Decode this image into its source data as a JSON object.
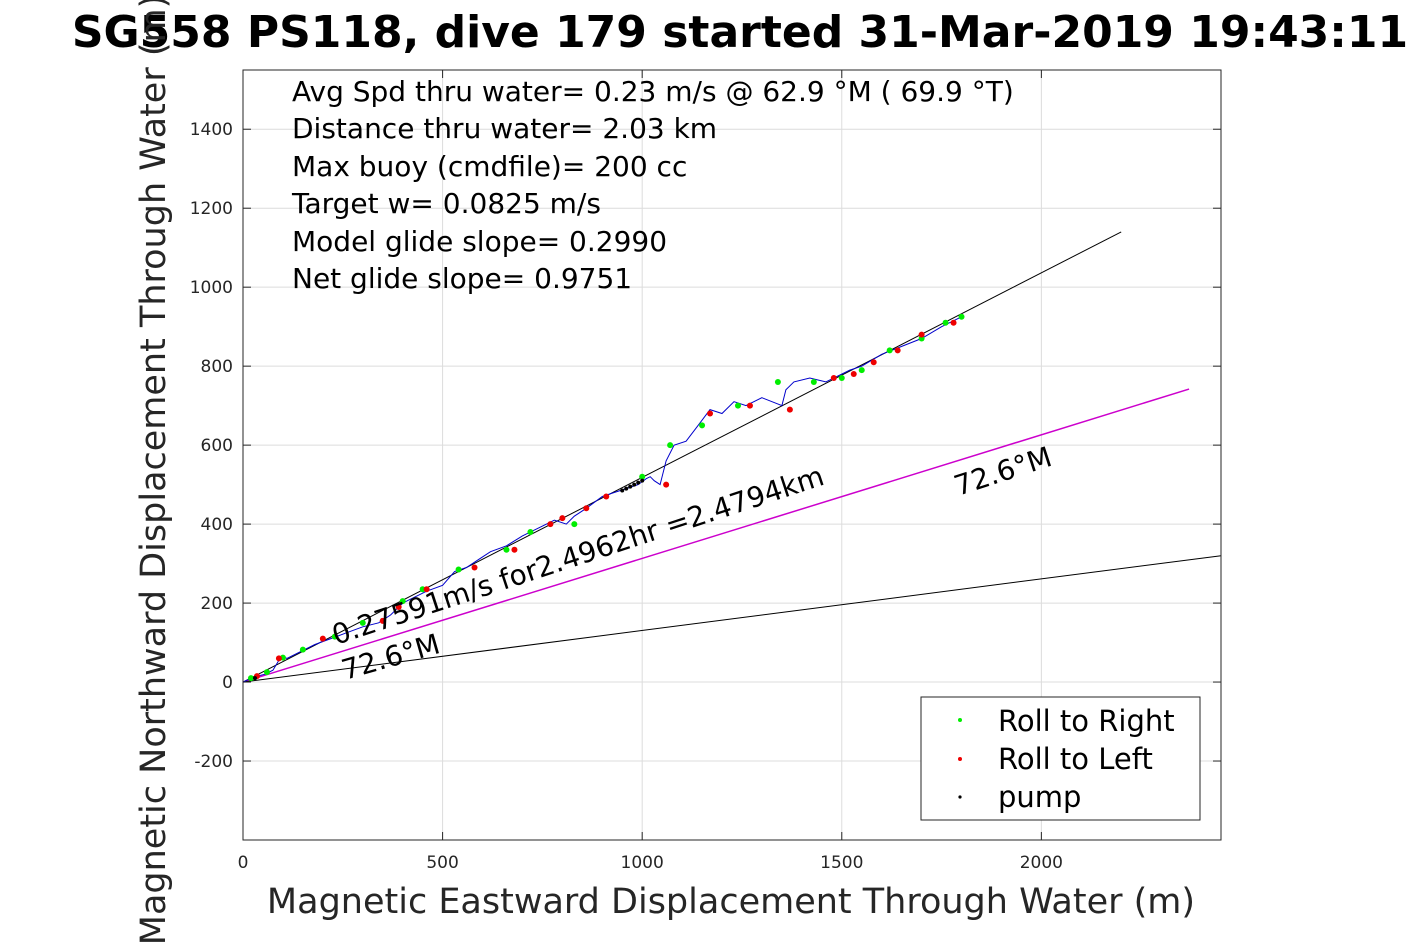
{
  "chart_data": {
    "type": "line",
    "title": "SG558 PS118, dive 179 started 31-Mar-2019 19:43:11",
    "xlabel": "Magnetic Eastward Displacement Through Water (m)",
    "ylabel": "Magnetic Northward Displacement Through Water (m)",
    "xlim": [
      0,
      2450
    ],
    "ylim": [
      -400,
      1550
    ],
    "xticks": [
      0,
      500,
      1000,
      1500,
      2000
    ],
    "yticks": [
      -200,
      0,
      200,
      400,
      600,
      800,
      1000,
      1200,
      1400
    ],
    "grid": true,
    "annotations": [
      "Avg Spd thru water=  0.23 m/s @  62.9 °M ( 69.9 °T)",
      "Distance thru water=  2.03 km",
      "Max buoy (cmdfile)= 200 cc",
      "Target w= 0.0825 m/s",
      "Model glide slope= 0.2990",
      "Net glide slope= 0.9751"
    ],
    "current_label": "0.27591m/s for2.4962hr =2.4794km",
    "heading_label_1": "72.6°M",
    "heading_label_2": "72.6°M",
    "legend": {
      "position": "bottom-right",
      "entries": [
        {
          "label": "Roll to Right",
          "color": "#00ee00"
        },
        {
          "label": "Roll to Left",
          "color": "#ee0000"
        },
        {
          "label": "pump",
          "color": "#000000"
        }
      ]
    },
    "lines": [
      {
        "name": "avg-heading-line",
        "color": "#000000",
        "x": [
          0,
          2200
        ],
        "y": [
          0,
          1140
        ]
      },
      {
        "name": "current-line",
        "color": "#cc00cc",
        "x": [
          0,
          2370
        ],
        "y": [
          0,
          742
        ]
      },
      {
        "name": "lower-heading-line",
        "color": "#000000",
        "x": [
          0,
          2450
        ],
        "y": [
          0,
          320
        ]
      }
    ],
    "track": {
      "color": "#0000cc",
      "x": [
        0,
        25,
        55,
        75,
        90,
        100,
        110,
        140,
        180,
        220,
        260,
        300,
        340,
        370,
        400,
        420,
        460,
        500,
        530,
        560,
        590,
        620,
        660,
        700,
        740,
        780,
        810,
        830,
        860,
        900,
        930,
        960,
        990,
        1010,
        1020,
        1025,
        1030,
        1045,
        1060,
        1080,
        1110,
        1140,
        1170,
        1200,
        1230,
        1260,
        1300,
        1350,
        1360,
        1380,
        1420,
        1460,
        1500,
        1520,
        1550,
        1600,
        1650,
        1700,
        1750,
        1800
      ],
      "y": [
        0,
        12,
        20,
        30,
        55,
        65,
        60,
        75,
        95,
        110,
        125,
        140,
        150,
        170,
        200,
        210,
        230,
        245,
        280,
        290,
        310,
        330,
        345,
        370,
        390,
        410,
        400,
        420,
        440,
        470,
        480,
        490,
        500,
        515,
        520,
        515,
        510,
        500,
        560,
        600,
        610,
        650,
        690,
        680,
        710,
        700,
        720,
        700,
        740,
        760,
        770,
        760,
        780,
        790,
        800,
        830,
        850,
        870,
        900,
        925
      ]
    },
    "roll_right_points": {
      "x": [
        20,
        60,
        100,
        150,
        230,
        300,
        400,
        450,
        540,
        660,
        720,
        830,
        1000,
        1070,
        1150,
        1240,
        1340,
        1430,
        1500,
        1550,
        1620,
        1700,
        1760,
        1800
      ],
      "y": [
        10,
        25,
        62,
        82,
        115,
        150,
        205,
        235,
        285,
        335,
        380,
        400,
        520,
        600,
        650,
        700,
        760,
        760,
        770,
        790,
        840,
        870,
        910,
        925
      ]
    },
    "roll_left_points": {
      "x": [
        35,
        90,
        200,
        350,
        390,
        460,
        580,
        680,
        770,
        800,
        860,
        910,
        1060,
        1170,
        1270,
        1370,
        1480,
        1530,
        1580,
        1640,
        1700,
        1780
      ],
      "y": [
        15,
        60,
        110,
        155,
        190,
        235,
        290,
        335,
        400,
        415,
        440,
        470,
        500,
        680,
        700,
        690,
        770,
        780,
        810,
        840,
        880,
        910
      ]
    },
    "pump_points": {
      "x": [
        950,
        960,
        970,
        980,
        990,
        1000,
        30
      ],
      "y": [
        485,
        490,
        495,
        500,
        505,
        510,
        10
      ]
    }
  }
}
